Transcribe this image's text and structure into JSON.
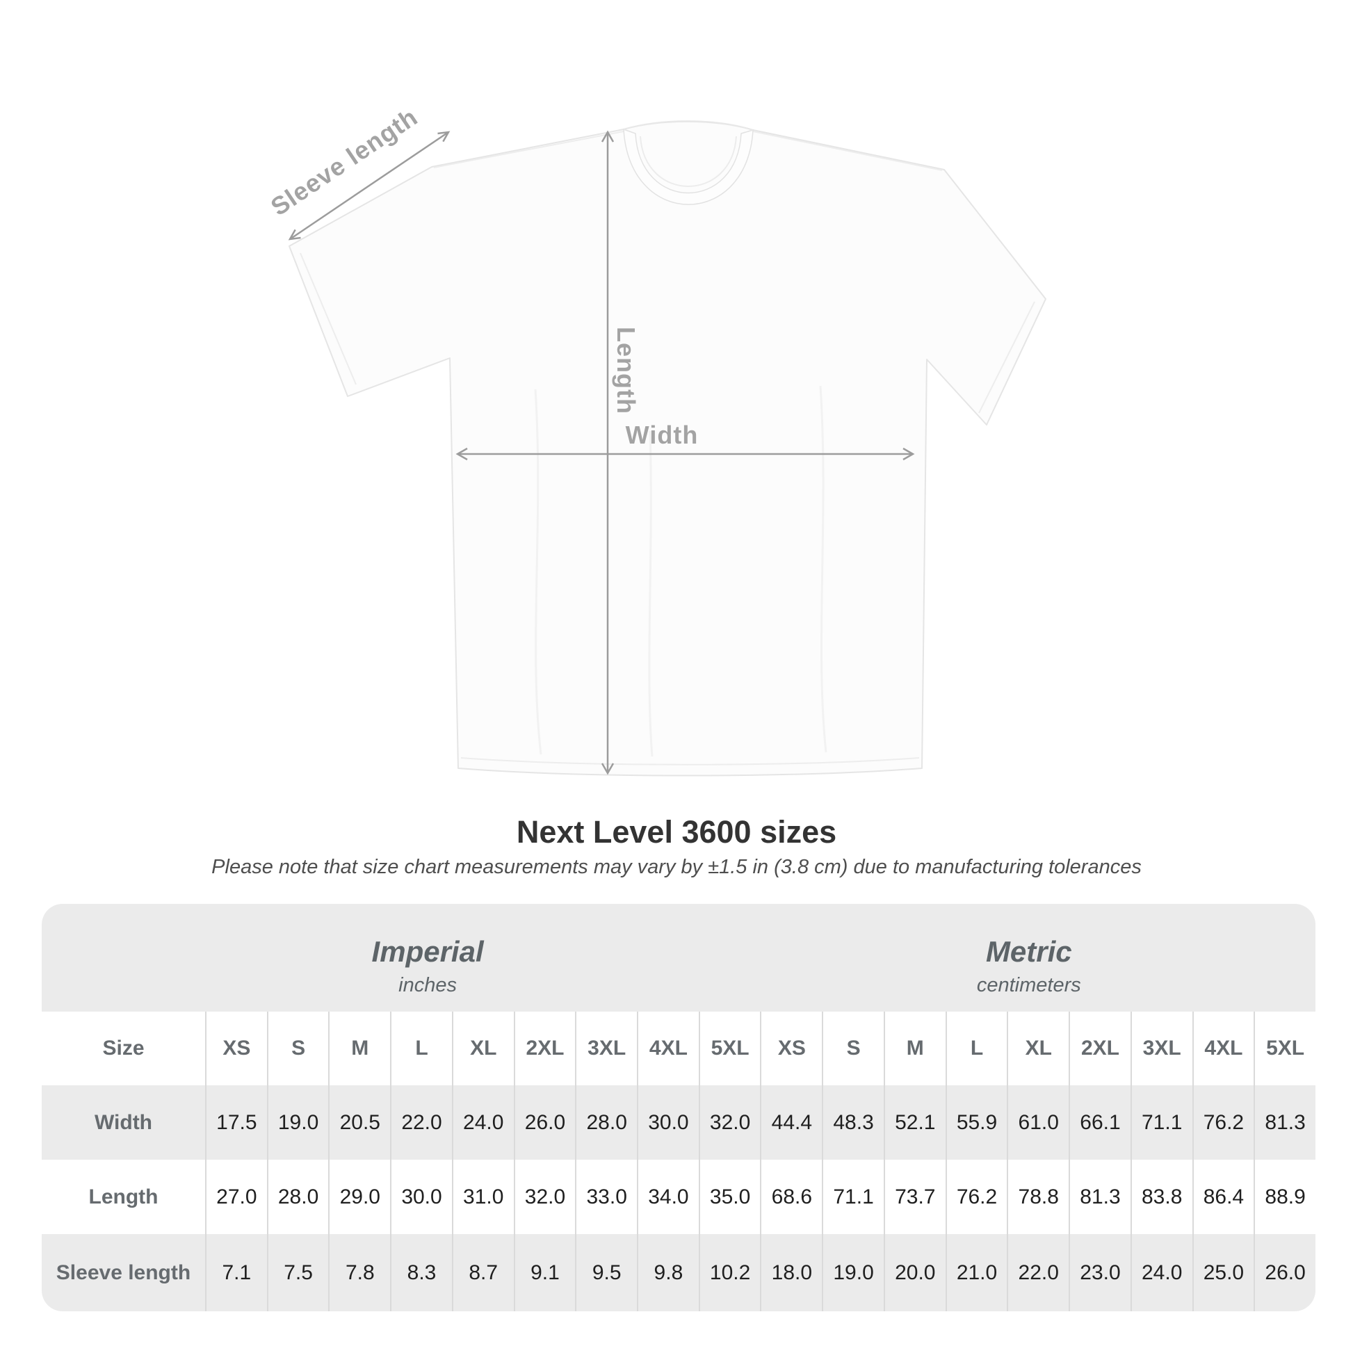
{
  "diagram": {
    "labels": {
      "sleeve": "Sleeve length",
      "length": "Length",
      "width": "Width"
    }
  },
  "chart_data": {
    "type": "table",
    "title": "Next Level 3600 sizes",
    "note": "Please note that size chart measurements may vary by ±1.5 in (3.8 cm) due to manufacturing tolerances",
    "column_groups": [
      {
        "label": "Imperial",
        "unit": "inches",
        "span": 9
      },
      {
        "label": "Metric",
        "unit": "centimeters",
        "span": 9
      }
    ],
    "row_header": "Size",
    "size_columns": [
      "XS",
      "S",
      "M",
      "L",
      "XL",
      "2XL",
      "3XL",
      "4XL",
      "5XL"
    ],
    "rows": [
      {
        "label": "Width",
        "imperial": [
          "17.5",
          "19.0",
          "20.5",
          "22.0",
          "24.0",
          "26.0",
          "28.0",
          "30.0",
          "32.0"
        ],
        "metric": [
          "44.4",
          "48.3",
          "52.1",
          "55.9",
          "61.0",
          "66.1",
          "71.1",
          "76.2",
          "81.3"
        ]
      },
      {
        "label": "Length",
        "imperial": [
          "27.0",
          "28.0",
          "29.0",
          "30.0",
          "31.0",
          "32.0",
          "33.0",
          "34.0",
          "35.0"
        ],
        "metric": [
          "68.6",
          "71.1",
          "73.7",
          "76.2",
          "78.8",
          "81.3",
          "83.8",
          "86.4",
          "88.9"
        ]
      },
      {
        "label": "Sleeve length",
        "imperial": [
          "7.1",
          "7.5",
          "7.8",
          "8.3",
          "8.7",
          "9.1",
          "9.5",
          "9.8",
          "10.2"
        ],
        "metric": [
          "18.0",
          "19.0",
          "20.0",
          "21.0",
          "22.0",
          "23.0",
          "24.0",
          "25.0",
          "26.0"
        ]
      }
    ],
    "colors": {
      "table_bg": "#ebebeb",
      "row_alt_bg": "#ffffff",
      "separator": "#dadada",
      "header_text": "#666b6f",
      "value_text": "#1f1f1f",
      "measure_line": "#9c9c9c",
      "measure_label": "#a3a3a3"
    }
  }
}
